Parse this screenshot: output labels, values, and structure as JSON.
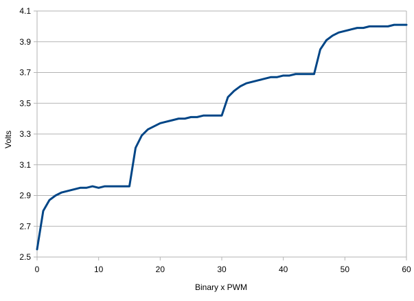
{
  "chart_data": {
    "type": "line",
    "title": "",
    "xlabel": "Binary x PWM",
    "ylabel": "Volts",
    "xlim": [
      0,
      60
    ],
    "ylim": [
      2.5,
      4.1
    ],
    "x_ticks": [
      "0",
      "10",
      "20",
      "30",
      "40",
      "50",
      "60"
    ],
    "y_ticks": [
      "2.5",
      "2.7",
      "2.9",
      "3.1",
      "3.3",
      "3.5",
      "3.7",
      "3.9",
      "4.1"
    ],
    "grid": "horizontal",
    "legend": "none",
    "line_color": "#004586",
    "series": [
      {
        "x": [
          0,
          1,
          2,
          3,
          4,
          5,
          6,
          7,
          8,
          9,
          10,
          11,
          12,
          13,
          14,
          15,
          16,
          17,
          18,
          19,
          20,
          21,
          22,
          23,
          24,
          25,
          26,
          27,
          28,
          29,
          30,
          31,
          32,
          33,
          34,
          35,
          36,
          37,
          38,
          39,
          40,
          41,
          42,
          43,
          44,
          45,
          46,
          47,
          48,
          49,
          50,
          51,
          52,
          53,
          54,
          55,
          56,
          57,
          58,
          59,
          60
        ],
        "values": [
          2.55,
          2.8,
          2.87,
          2.9,
          2.92,
          2.93,
          2.94,
          2.95,
          2.95,
          2.96,
          2.95,
          2.96,
          2.96,
          2.96,
          2.96,
          2.96,
          3.21,
          3.29,
          3.33,
          3.35,
          3.37,
          3.38,
          3.39,
          3.4,
          3.4,
          3.41,
          3.41,
          3.42,
          3.42,
          3.42,
          3.42,
          3.54,
          3.58,
          3.61,
          3.63,
          3.64,
          3.65,
          3.66,
          3.67,
          3.67,
          3.68,
          3.68,
          3.69,
          3.69,
          3.69,
          3.69,
          3.85,
          3.91,
          3.94,
          3.96,
          3.97,
          3.98,
          3.99,
          3.99,
          4.0,
          4.0,
          4.0,
          4.0,
          4.01,
          4.01,
          4.01
        ]
      }
    ]
  }
}
